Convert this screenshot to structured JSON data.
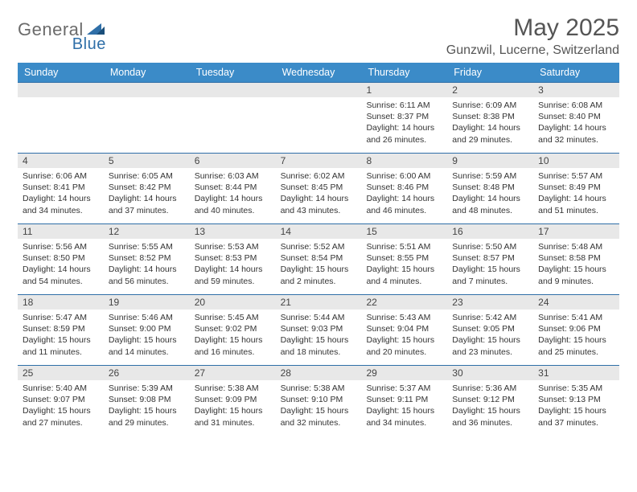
{
  "logo": {
    "text_general": "General",
    "text_blue": "Blue"
  },
  "title": "May 2025",
  "location": "Gunzwil, Lucerne, Switzerland",
  "colors": {
    "header_bg": "#3b8bc8",
    "cell_border": "#2f6fa8",
    "daynum_bg": "#e8e8e8",
    "logo_grey": "#6b6b6b",
    "logo_blue": "#2f6fa8"
  },
  "day_names": [
    "Sunday",
    "Monday",
    "Tuesday",
    "Wednesday",
    "Thursday",
    "Friday",
    "Saturday"
  ],
  "weeks": [
    [
      {
        "n": "",
        "sr": "",
        "ss": "",
        "dl": ""
      },
      {
        "n": "",
        "sr": "",
        "ss": "",
        "dl": ""
      },
      {
        "n": "",
        "sr": "",
        "ss": "",
        "dl": ""
      },
      {
        "n": "",
        "sr": "",
        "ss": "",
        "dl": ""
      },
      {
        "n": "1",
        "sr": "Sunrise: 6:11 AM",
        "ss": "Sunset: 8:37 PM",
        "dl": "Daylight: 14 hours and 26 minutes."
      },
      {
        "n": "2",
        "sr": "Sunrise: 6:09 AM",
        "ss": "Sunset: 8:38 PM",
        "dl": "Daylight: 14 hours and 29 minutes."
      },
      {
        "n": "3",
        "sr": "Sunrise: 6:08 AM",
        "ss": "Sunset: 8:40 PM",
        "dl": "Daylight: 14 hours and 32 minutes."
      }
    ],
    [
      {
        "n": "4",
        "sr": "Sunrise: 6:06 AM",
        "ss": "Sunset: 8:41 PM",
        "dl": "Daylight: 14 hours and 34 minutes."
      },
      {
        "n": "5",
        "sr": "Sunrise: 6:05 AM",
        "ss": "Sunset: 8:42 PM",
        "dl": "Daylight: 14 hours and 37 minutes."
      },
      {
        "n": "6",
        "sr": "Sunrise: 6:03 AM",
        "ss": "Sunset: 8:44 PM",
        "dl": "Daylight: 14 hours and 40 minutes."
      },
      {
        "n": "7",
        "sr": "Sunrise: 6:02 AM",
        "ss": "Sunset: 8:45 PM",
        "dl": "Daylight: 14 hours and 43 minutes."
      },
      {
        "n": "8",
        "sr": "Sunrise: 6:00 AM",
        "ss": "Sunset: 8:46 PM",
        "dl": "Daylight: 14 hours and 46 minutes."
      },
      {
        "n": "9",
        "sr": "Sunrise: 5:59 AM",
        "ss": "Sunset: 8:48 PM",
        "dl": "Daylight: 14 hours and 48 minutes."
      },
      {
        "n": "10",
        "sr": "Sunrise: 5:57 AM",
        "ss": "Sunset: 8:49 PM",
        "dl": "Daylight: 14 hours and 51 minutes."
      }
    ],
    [
      {
        "n": "11",
        "sr": "Sunrise: 5:56 AM",
        "ss": "Sunset: 8:50 PM",
        "dl": "Daylight: 14 hours and 54 minutes."
      },
      {
        "n": "12",
        "sr": "Sunrise: 5:55 AM",
        "ss": "Sunset: 8:52 PM",
        "dl": "Daylight: 14 hours and 56 minutes."
      },
      {
        "n": "13",
        "sr": "Sunrise: 5:53 AM",
        "ss": "Sunset: 8:53 PM",
        "dl": "Daylight: 14 hours and 59 minutes."
      },
      {
        "n": "14",
        "sr": "Sunrise: 5:52 AM",
        "ss": "Sunset: 8:54 PM",
        "dl": "Daylight: 15 hours and 2 minutes."
      },
      {
        "n": "15",
        "sr": "Sunrise: 5:51 AM",
        "ss": "Sunset: 8:55 PM",
        "dl": "Daylight: 15 hours and 4 minutes."
      },
      {
        "n": "16",
        "sr": "Sunrise: 5:50 AM",
        "ss": "Sunset: 8:57 PM",
        "dl": "Daylight: 15 hours and 7 minutes."
      },
      {
        "n": "17",
        "sr": "Sunrise: 5:48 AM",
        "ss": "Sunset: 8:58 PM",
        "dl": "Daylight: 15 hours and 9 minutes."
      }
    ],
    [
      {
        "n": "18",
        "sr": "Sunrise: 5:47 AM",
        "ss": "Sunset: 8:59 PM",
        "dl": "Daylight: 15 hours and 11 minutes."
      },
      {
        "n": "19",
        "sr": "Sunrise: 5:46 AM",
        "ss": "Sunset: 9:00 PM",
        "dl": "Daylight: 15 hours and 14 minutes."
      },
      {
        "n": "20",
        "sr": "Sunrise: 5:45 AM",
        "ss": "Sunset: 9:02 PM",
        "dl": "Daylight: 15 hours and 16 minutes."
      },
      {
        "n": "21",
        "sr": "Sunrise: 5:44 AM",
        "ss": "Sunset: 9:03 PM",
        "dl": "Daylight: 15 hours and 18 minutes."
      },
      {
        "n": "22",
        "sr": "Sunrise: 5:43 AM",
        "ss": "Sunset: 9:04 PM",
        "dl": "Daylight: 15 hours and 20 minutes."
      },
      {
        "n": "23",
        "sr": "Sunrise: 5:42 AM",
        "ss": "Sunset: 9:05 PM",
        "dl": "Daylight: 15 hours and 23 minutes."
      },
      {
        "n": "24",
        "sr": "Sunrise: 5:41 AM",
        "ss": "Sunset: 9:06 PM",
        "dl": "Daylight: 15 hours and 25 minutes."
      }
    ],
    [
      {
        "n": "25",
        "sr": "Sunrise: 5:40 AM",
        "ss": "Sunset: 9:07 PM",
        "dl": "Daylight: 15 hours and 27 minutes."
      },
      {
        "n": "26",
        "sr": "Sunrise: 5:39 AM",
        "ss": "Sunset: 9:08 PM",
        "dl": "Daylight: 15 hours and 29 minutes."
      },
      {
        "n": "27",
        "sr": "Sunrise: 5:38 AM",
        "ss": "Sunset: 9:09 PM",
        "dl": "Daylight: 15 hours and 31 minutes."
      },
      {
        "n": "28",
        "sr": "Sunrise: 5:38 AM",
        "ss": "Sunset: 9:10 PM",
        "dl": "Daylight: 15 hours and 32 minutes."
      },
      {
        "n": "29",
        "sr": "Sunrise: 5:37 AM",
        "ss": "Sunset: 9:11 PM",
        "dl": "Daylight: 15 hours and 34 minutes."
      },
      {
        "n": "30",
        "sr": "Sunrise: 5:36 AM",
        "ss": "Sunset: 9:12 PM",
        "dl": "Daylight: 15 hours and 36 minutes."
      },
      {
        "n": "31",
        "sr": "Sunrise: 5:35 AM",
        "ss": "Sunset: 9:13 PM",
        "dl": "Daylight: 15 hours and 37 minutes."
      }
    ]
  ]
}
